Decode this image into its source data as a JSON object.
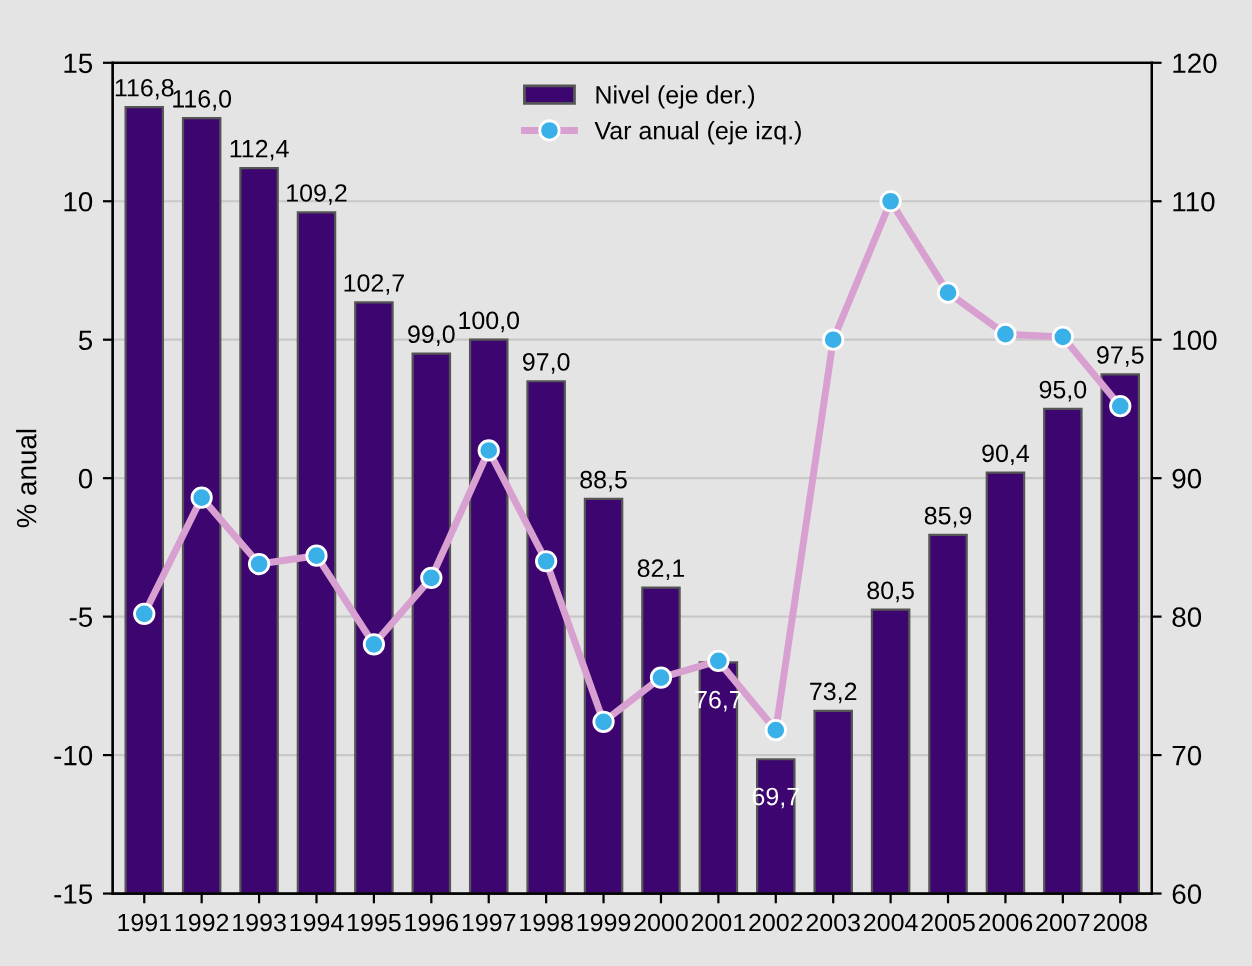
{
  "chart_data": {
    "type": "bar",
    "categories": [
      "1991",
      "1992",
      "1993",
      "1994",
      "1995",
      "1996",
      "1997",
      "1998",
      "1999",
      "2000",
      "2001",
      "2002",
      "2003",
      "2004",
      "2005",
      "2006",
      "2007",
      "2008"
    ],
    "series": [
      {
        "name": "Nivel (eje der.)",
        "axis": "y2",
        "color": "#3d0570",
        "values": [
          116.8,
          116.0,
          112.4,
          109.2,
          102.7,
          99.0,
          100.0,
          97.0,
          88.5,
          82.1,
          76.7,
          69.7,
          73.2,
          80.5,
          85.9,
          90.4,
          95.0,
          97.5
        ],
        "value_labels": [
          "116,8",
          "116,0",
          "112,4",
          "109,2",
          "102,7",
          "99,0",
          "100,0",
          "97,0",
          "88,5",
          "82,1",
          "76,7",
          "69,7",
          "73,2",
          "80,5",
          "85,9",
          "90,4",
          "95,0",
          "97,5"
        ]
      },
      {
        "name": "Var anual (eje izq.)",
        "type": "line",
        "color": "#d8a0d0",
        "marker": "circle",
        "values": [
          -4.9,
          -0.7,
          -3.1,
          -2.8,
          -6.0,
          -3.6,
          1.0,
          -3.0,
          -8.8,
          -7.2,
          -6.6,
          -9.1,
          5.0,
          10.0,
          6.7,
          5.2,
          5.1,
          2.6
        ]
      }
    ],
    "ylabel": "% anual",
    "ylim": [
      -15,
      15
    ],
    "yticks": [
      -15,
      -10,
      -5,
      0,
      5,
      10,
      15
    ],
    "y2lim": [
      60,
      120
    ],
    "y2ticks": [
      60,
      70,
      80,
      90,
      100,
      110,
      120
    ],
    "grid": "y",
    "legend": "top"
  }
}
